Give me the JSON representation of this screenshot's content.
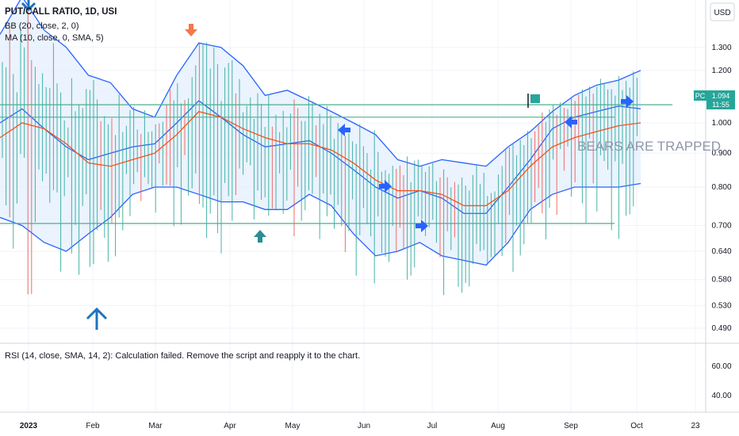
{
  "legend": {
    "title": "PUT/CALL RATIO, 1D, USI",
    "bb": "BB (20, close, 2, 0)",
    "ma": "MA (10, close, 0, SMA, 5)"
  },
  "rsi_message": "RSI (14, close, SMA, 14, 2): Calculation failed. Remove the script and reapply it to the chart.",
  "currency": "USD",
  "annotation_text": "BEARS ARE TRAPPED",
  "price_tag": {
    "label": "PC",
    "value": "1.094",
    "sub": "11:55"
  },
  "colors": {
    "up_bar": "#26a69a",
    "down_bar": "#ef5350",
    "bb_band": "#2962ff",
    "bb_fill": "#e3effd",
    "ma_line": "#f4511e",
    "hline": "#4caf8e",
    "arrow_blue": "#2962ff",
    "arrow_blue_dark": "#1e73be",
    "arrow_teal": "#2a8d95",
    "arrow_orange": "#f2784b"
  },
  "chart_data": {
    "type": "line",
    "x_axis_labels": [
      "2023",
      "Feb",
      "Mar",
      "Apr",
      "May",
      "Jun",
      "Jul",
      "Aug",
      "Sep",
      "Oct",
      "23"
    ],
    "y_axis_main": {
      "scale": "log",
      "ticks": [
        1.3,
        1.2,
        1.0,
        0.9,
        0.8,
        0.7,
        0.64,
        0.58,
        0.53,
        0.49
      ],
      "tick_labels": [
        "1.300",
        "1.200",
        "1.000",
        "0.900",
        "0.800",
        "0.700",
        "0.640",
        "0.580",
        "0.530",
        "0.490"
      ]
    },
    "y_axis_rsi": {
      "ticks": [
        60,
        40
      ],
      "tick_labels": [
        "60.00",
        "40.00"
      ]
    },
    "series": [
      {
        "name": "BB upper",
        "values": [
          1.36,
          1.55,
          1.38,
          1.3,
          1.18,
          1.15,
          1.05,
          1.02,
          1.18,
          1.32,
          1.3,
          1.22,
          1.1,
          1.12,
          1.08,
          1.04,
          1.0,
          0.96,
          0.88,
          0.86,
          0.88,
          0.87,
          0.86,
          0.92,
          0.97,
          1.04,
          1.1,
          1.14,
          1.16,
          1.2
        ]
      },
      {
        "name": "BB middle",
        "values": [
          1.0,
          1.05,
          0.98,
          0.92,
          0.88,
          0.9,
          0.92,
          0.93,
          1.0,
          1.08,
          1.02,
          0.96,
          0.92,
          0.93,
          0.94,
          0.9,
          0.85,
          0.8,
          0.77,
          0.79,
          0.77,
          0.73,
          0.73,
          0.8,
          0.88,
          0.98,
          1.02,
          1.04,
          1.06,
          1.05
        ]
      },
      {
        "name": "BB lower",
        "values": [
          0.72,
          0.7,
          0.66,
          0.64,
          0.68,
          0.72,
          0.78,
          0.8,
          0.8,
          0.78,
          0.76,
          0.76,
          0.74,
          0.74,
          0.78,
          0.75,
          0.68,
          0.63,
          0.64,
          0.66,
          0.63,
          0.62,
          0.61,
          0.66,
          0.74,
          0.78,
          0.8,
          0.8,
          0.8,
          0.81
        ]
      },
      {
        "name": "MA",
        "values": [
          0.95,
          1.0,
          0.98,
          0.93,
          0.87,
          0.86,
          0.88,
          0.9,
          0.96,
          1.04,
          1.02,
          0.98,
          0.95,
          0.93,
          0.93,
          0.91,
          0.87,
          0.82,
          0.79,
          0.79,
          0.78,
          0.75,
          0.75,
          0.79,
          0.86,
          0.92,
          0.95,
          0.97,
          0.99,
          1.0
        ]
      }
    ],
    "horizontal_lines": [
      1.065,
      1.02,
      0.705
    ],
    "grid": true,
    "legend_position": "top-left"
  }
}
